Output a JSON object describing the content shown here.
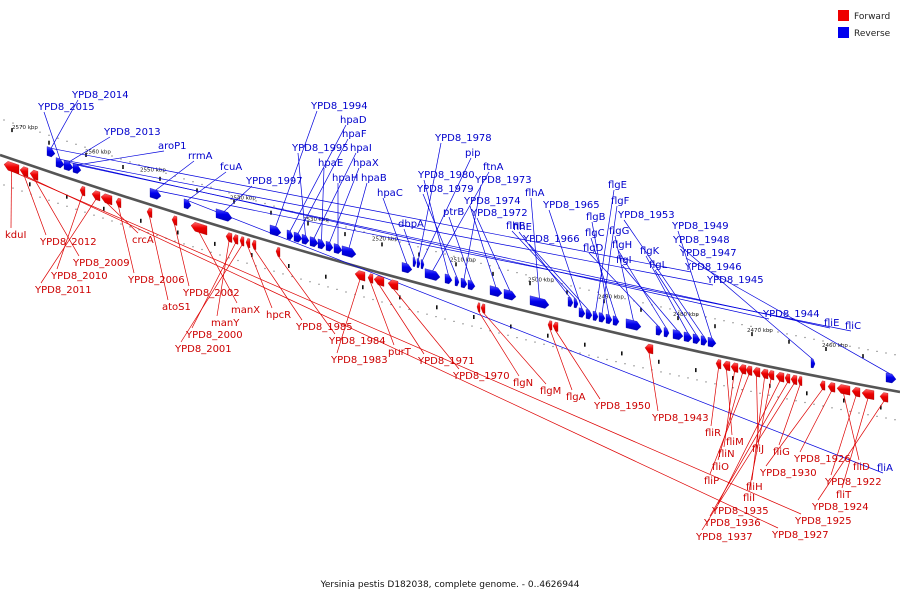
{
  "caption": "Yersinia pestis D182038, complete genome. - 0..4626944",
  "legend": [
    {
      "label": "Forward",
      "color": "#ee0000"
    },
    {
      "label": "Reverse",
      "color": "#0000ee"
    }
  ],
  "scale_labels": [
    "2570 kbp",
    "2560 kbp",
    "2550 kbp",
    "2540 kbp",
    "2530 kbp",
    "2520 kbp",
    "2510 kbp",
    "2500 kbp",
    "2490 kbp",
    "2480 kbp",
    "2470 kbp",
    "2460 kbp"
  ],
  "reverse_genes": [
    "YPD8_2014",
    "YPD8_2015",
    "YPD8_2013",
    "aroP1",
    "rrmA",
    "fcuA",
    "YPD8_1997",
    "YPD8_1994",
    "hpaD",
    "hpaF",
    "YPD8_1995",
    "hpaI",
    "hpaE",
    "hpaX",
    "hpaH",
    "hpaB",
    "hpaC",
    "dbpA",
    "YPD8_1978",
    "pip",
    "ftnA",
    "YPD8_1980",
    "YPD8_1979",
    "YPD8_1973",
    "ptrB",
    "YPD8_1974",
    "YPD8_1972",
    "flhA",
    "flhE",
    "flhB",
    "YPD8_1965",
    "YPD8_1966",
    "flgE",
    "flgF",
    "flgB",
    "flgC",
    "flgG",
    "flgD",
    "flgH",
    "flgI",
    "flgK",
    "flgL",
    "YPD8_1953",
    "YPD8_1949",
    "YPD8_1948",
    "YPD8_1947",
    "YPD8_1946",
    "YPD8_1945",
    "YPD8_1944",
    "fliE",
    "fliC",
    "fliA"
  ],
  "forward_genes": [
    "kduI",
    "YPD8_2012",
    "YPD8_2009",
    "YPD8_2010",
    "YPD8_2011",
    "crcA",
    "YPD8_2006",
    "atoS1",
    "YPD8_2002",
    "manX",
    "manY",
    "YPD8_2000",
    "YPD8_2001",
    "hpcR",
    "YPD8_1985",
    "YPD8_1984",
    "YPD8_1983",
    "purT",
    "YPD8_1971",
    "YPD8_1970",
    "flgN",
    "flgM",
    "flgA",
    "YPD8_1950",
    "YPD8_1943",
    "fliR",
    "fliM",
    "fliN",
    "fliO",
    "fliP",
    "fliJ",
    "fliH",
    "fliI",
    "YPD8_1935",
    "YPD8_1936",
    "YPD8_1937",
    "fliG",
    "YPD8_1930",
    "YPD8_1926",
    "fliD",
    "YPD8_1922",
    "fliT",
    "YPD8_1924",
    "YPD8_1925",
    "YPD8_1927"
  ]
}
